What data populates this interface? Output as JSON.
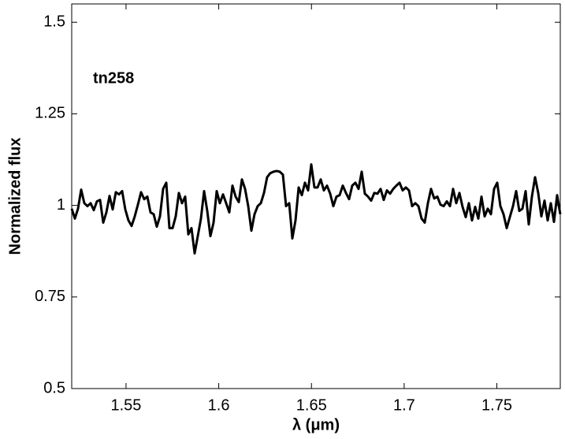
{
  "chart_data": {
    "type": "line",
    "annotation": "tn258",
    "xlabel": "λ (μm)",
    "ylabel": "Normalized flux",
    "color": "#000000",
    "xlim": [
      1.5207,
      1.7842
    ],
    "ylim": [
      0.5,
      1.55
    ],
    "xticks": [
      1.55,
      1.6,
      1.65,
      1.7,
      1.75
    ],
    "yticks": [
      0.5,
      0.75,
      1,
      1.25,
      1.5
    ],
    "x": [
      1.5207,
      1.5224,
      1.5241,
      1.5258,
      1.5275,
      1.5292,
      1.5309,
      1.5326,
      1.5343,
      1.536,
      1.5377,
      1.5394,
      1.5411,
      1.5428,
      1.5445,
      1.5462,
      1.5479,
      1.5496,
      1.5513,
      1.553,
      1.5547,
      1.5564,
      1.5581,
      1.5598,
      1.5615,
      1.5632,
      1.5649,
      1.5666,
      1.5683,
      1.57,
      1.5717,
      1.5734,
      1.5751,
      1.5768,
      1.5785,
      1.5802,
      1.5819,
      1.5836,
      1.5853,
      1.587,
      1.5887,
      1.5904,
      1.5921,
      1.5938,
      1.5955,
      1.5972,
      1.5989,
      1.6006,
      1.6023,
      1.604,
      1.6057,
      1.6074,
      1.6091,
      1.6108,
      1.6125,
      1.6142,
      1.6159,
      1.6176,
      1.6193,
      1.621,
      1.6227,
      1.6244,
      1.6261,
      1.6278,
      1.6295,
      1.6312,
      1.6329,
      1.6346,
      1.6363,
      1.638,
      1.6397,
      1.6414,
      1.6431,
      1.6448,
      1.6465,
      1.6482,
      1.6499,
      1.6516,
      1.6533,
      1.655,
      1.6567,
      1.6584,
      1.6601,
      1.6618,
      1.6635,
      1.6652,
      1.6669,
      1.6686,
      1.6703,
      1.672,
      1.6737,
      1.6754,
      1.6771,
      1.6788,
      1.6805,
      1.6822,
      1.6839,
      1.6856,
      1.6873,
      1.689,
      1.6907,
      1.6924,
      1.6941,
      1.6958,
      1.6975,
      1.6992,
      1.7009,
      1.7026,
      1.7043,
      1.706,
      1.7077,
      1.7094,
      1.7111,
      1.7128,
      1.7145,
      1.7162,
      1.7179,
      1.7196,
      1.7213,
      1.723,
      1.7247,
      1.7264,
      1.7281,
      1.7298,
      1.7315,
      1.7332,
      1.7349,
      1.7366,
      1.7383,
      1.74,
      1.7417,
      1.7434,
      1.7451,
      1.7468,
      1.7485,
      1.7502,
      1.7519,
      1.7536,
      1.7553,
      1.757,
      1.7587,
      1.7604,
      1.7621,
      1.7638,
      1.7655,
      1.7672,
      1.7689,
      1.7706,
      1.7723,
      1.774,
      1.7757,
      1.7774,
      1.7791,
      1.7808,
      1.7825,
      1.7842
    ],
    "values": [
      0.991,
      0.964,
      0.991,
      1.043,
      1.006,
      0.998,
      1.006,
      0.987,
      1.011,
      1.015,
      0.953,
      0.981,
      1.026,
      0.989,
      1.036,
      1.03,
      1.039,
      0.989,
      0.959,
      0.944,
      0.97,
      1.002,
      1.036,
      1.017,
      1.024,
      0.981,
      0.976,
      0.942,
      0.97,
      1.045,
      1.062,
      0.938,
      0.938,
      0.97,
      1.034,
      1.006,
      1.024,
      0.921,
      0.938,
      0.869,
      0.916,
      0.964,
      1.039,
      0.985,
      0.916,
      0.953,
      1.039,
      1.006,
      1.03,
      1.006,
      0.981,
      1.054,
      1.024,
      1.009,
      1.071,
      1.045,
      0.998,
      0.931,
      0.976,
      0.998,
      1.006,
      1.034,
      1.077,
      1.088,
      1.092,
      1.094,
      1.092,
      1.084,
      0.998,
      1.006,
      0.91,
      0.959,
      1.049,
      1.028,
      1.062,
      1.041,
      1.112,
      1.049,
      1.049,
      1.071,
      1.041,
      1.054,
      1.032,
      0.998,
      1.024,
      1.028,
      1.054,
      1.034,
      1.017,
      1.054,
      1.062,
      1.045,
      1.092,
      1.032,
      1.024,
      1.013,
      1.034,
      1.032,
      1.045,
      1.015,
      1.041,
      1.032,
      1.045,
      1.054,
      1.062,
      1.041,
      1.049,
      1.041,
      0.998,
      1.006,
      0.998,
      0.964,
      0.953,
      1.006,
      1.045,
      1.019,
      1.024,
      1.002,
      0.998,
      1.011,
      0.998,
      1.045,
      1.006,
      1.034,
      0.996,
      0.968,
      1.006,
      0.959,
      0.996,
      0.964,
      1.024,
      0.97,
      0.991,
      0.976,
      1.045,
      1.062,
      0.998,
      0.976,
      0.938,
      0.968,
      0.998,
      1.039,
      0.985,
      0.991,
      1.039,
      0.948,
      1.024,
      1.077,
      1.034,
      0.97,
      1.013,
      0.959,
      1.006,
      0.955,
      1.028,
      0.976
    ]
  }
}
